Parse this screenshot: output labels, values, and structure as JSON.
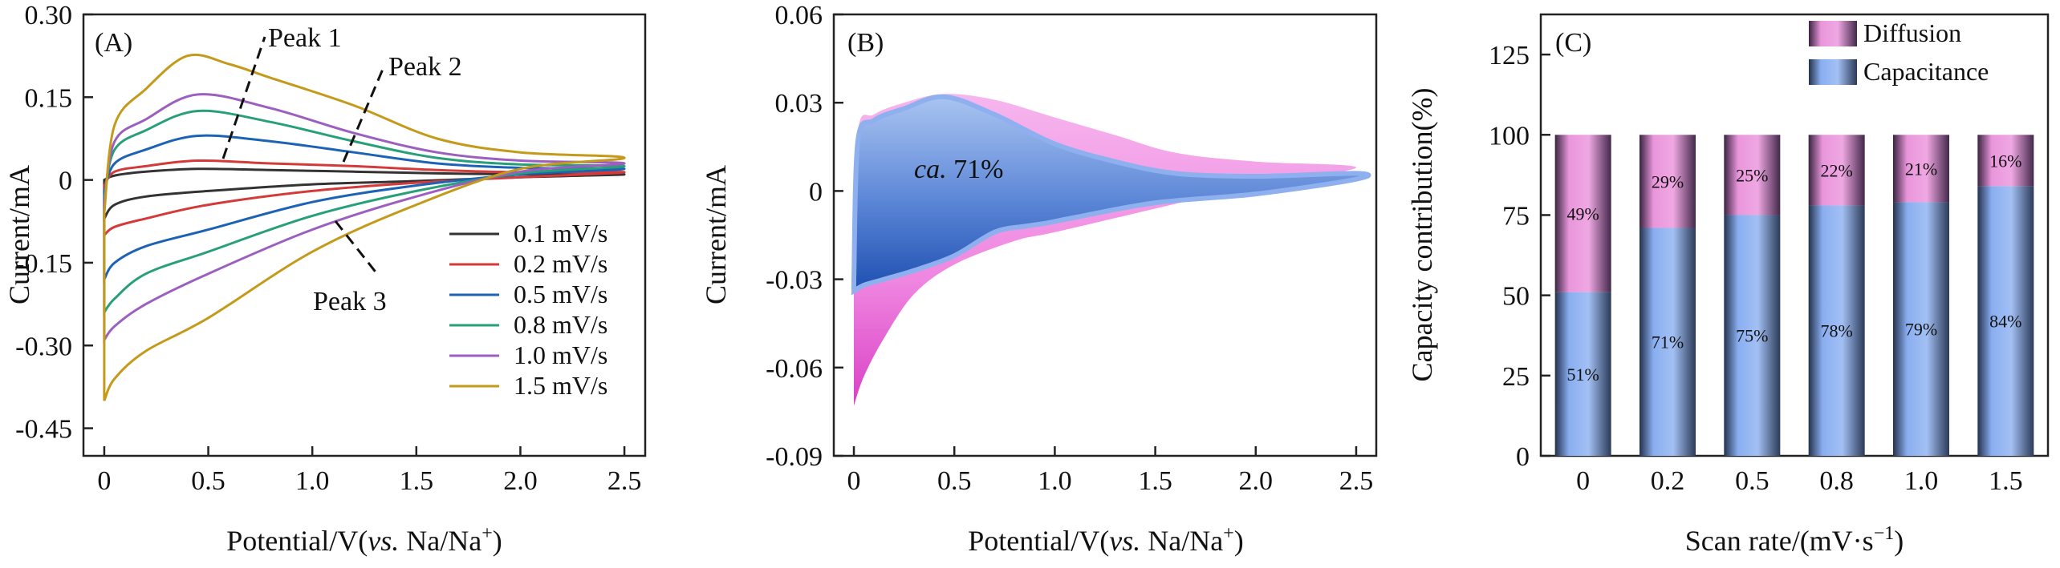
{
  "colors": {
    "s01": "#333333",
    "s02": "#d43a3a",
    "s05": "#1d63b5",
    "s08": "#27a07a",
    "s10": "#9b5fc0",
    "s15": "#c49a1b",
    "diffusion": "#e77fd8",
    "capacitance": "#7ea7ea"
  },
  "chart_data": [
    {
      "type": "line",
      "panel_label": "(A)",
      "xlabel_prefix": "Potential/V(",
      "xlabel_italic": "vs.",
      "xlabel_suffix": " Na/Na",
      "xlabel_sup": "+",
      "xlabel_close": ")",
      "ylabel": "Current/mA",
      "xlim": [
        -0.1,
        2.6
      ],
      "ylim": [
        -0.5,
        0.3
      ],
      "xticks": [
        0,
        0.5,
        1.0,
        1.5,
        2.0,
        2.5
      ],
      "xtick_labels": [
        "0",
        "0.5",
        "1.0",
        "1.5",
        "2.0",
        "2.5"
      ],
      "yticks": [
        0.3,
        0.15,
        0,
        -0.15,
        -0.3,
        -0.45
      ],
      "ytick_labels": [
        "0.30",
        "0.15",
        "0",
        "-0.15",
        "-0.30",
        "-0.45"
      ],
      "annotations": [
        "Peak 1",
        "Peak 2",
        "Peak 3"
      ],
      "series": [
        {
          "name": "0.1 mV/s",
          "color_key": "s01",
          "anodic": [
            [
              0,
              0
            ],
            [
              0.05,
              0.008
            ],
            [
              0.2,
              0.015
            ],
            [
              0.45,
              0.02
            ],
            [
              0.8,
              0.018
            ],
            [
              1.2,
              0.015
            ],
            [
              1.6,
              0.012
            ],
            [
              2.0,
              0.01
            ],
            [
              2.5,
              0.01
            ]
          ],
          "cathodic": [
            [
              2.5,
              0.01
            ],
            [
              2.0,
              0.005
            ],
            [
              1.5,
              -0.002
            ],
            [
              1.0,
              -0.008
            ],
            [
              0.5,
              -0.02
            ],
            [
              0.2,
              -0.03
            ],
            [
              0.05,
              -0.045
            ],
            [
              0,
              -0.07
            ]
          ]
        },
        {
          "name": "0.2 mV/s",
          "color_key": "s02",
          "anodic": [
            [
              0,
              -0.01
            ],
            [
              0.05,
              0.015
            ],
            [
              0.2,
              0.025
            ],
            [
              0.45,
              0.035
            ],
            [
              0.8,
              0.03
            ],
            [
              1.2,
              0.025
            ],
            [
              1.6,
              0.018
            ],
            [
              2.0,
              0.014
            ],
            [
              2.5,
              0.014
            ]
          ],
          "cathodic": [
            [
              2.5,
              0.014
            ],
            [
              2.0,
              0.005
            ],
            [
              1.5,
              -0.005
            ],
            [
              1.0,
              -0.02
            ],
            [
              0.5,
              -0.045
            ],
            [
              0.2,
              -0.07
            ],
            [
              0.05,
              -0.085
            ],
            [
              0,
              -0.1
            ]
          ]
        },
        {
          "name": "0.5 mV/s",
          "color_key": "s05",
          "anodic": [
            [
              0,
              -0.02
            ],
            [
              0.05,
              0.03
            ],
            [
              0.2,
              0.055
            ],
            [
              0.45,
              0.08
            ],
            [
              0.8,
              0.07
            ],
            [
              1.2,
              0.05
            ],
            [
              1.6,
              0.03
            ],
            [
              2.0,
              0.022
            ],
            [
              2.5,
              0.02
            ]
          ],
          "cathodic": [
            [
              2.5,
              0.02
            ],
            [
              2.0,
              0.01
            ],
            [
              1.5,
              -0.01
            ],
            [
              1.0,
              -0.04
            ],
            [
              0.5,
              -0.09
            ],
            [
              0.2,
              -0.12
            ],
            [
              0.05,
              -0.15
            ],
            [
              0,
              -0.18
            ]
          ]
        },
        {
          "name": "0.8 mV/s",
          "color_key": "s08",
          "anodic": [
            [
              0,
              -0.03
            ],
            [
              0.05,
              0.055
            ],
            [
              0.2,
              0.09
            ],
            [
              0.45,
              0.125
            ],
            [
              0.8,
              0.105
            ],
            [
              1.2,
              0.07
            ],
            [
              1.6,
              0.04
            ],
            [
              2.0,
              0.028
            ],
            [
              2.5,
              0.025
            ]
          ],
          "cathodic": [
            [
              2.5,
              0.025
            ],
            [
              2.0,
              0.012
            ],
            [
              1.5,
              -0.02
            ],
            [
              1.0,
              -0.065
            ],
            [
              0.5,
              -0.13
            ],
            [
              0.2,
              -0.17
            ],
            [
              0.05,
              -0.215
            ],
            [
              0,
              -0.24
            ]
          ]
        },
        {
          "name": "1.0 mV/s",
          "color_key": "s10",
          "anodic": [
            [
              0,
              -0.04
            ],
            [
              0.05,
              0.07
            ],
            [
              0.2,
              0.11
            ],
            [
              0.45,
              0.155
            ],
            [
              0.8,
              0.13
            ],
            [
              1.2,
              0.085
            ],
            [
              1.6,
              0.05
            ],
            [
              2.0,
              0.035
            ],
            [
              2.5,
              0.03
            ]
          ],
          "cathodic": [
            [
              2.5,
              0.03
            ],
            [
              2.0,
              0.015
            ],
            [
              1.5,
              -0.03
            ],
            [
              1.0,
              -0.09
            ],
            [
              0.5,
              -0.17
            ],
            [
              0.2,
              -0.225
            ],
            [
              0.05,
              -0.265
            ],
            [
              0,
              -0.29
            ]
          ]
        },
        {
          "name": "1.5 mV/s",
          "color_key": "s15",
          "anodic": [
            [
              0,
              -0.06
            ],
            [
              0.05,
              0.1
            ],
            [
              0.2,
              0.165
            ],
            [
              0.4,
              0.225
            ],
            [
              0.6,
              0.21
            ],
            [
              0.8,
              0.185
            ],
            [
              1.2,
              0.135
            ],
            [
              1.6,
              0.075
            ],
            [
              2.0,
              0.05
            ],
            [
              2.5,
              0.04
            ]
          ],
          "cathodic": [
            [
              2.5,
              0.04
            ],
            [
              2.0,
              0.02
            ],
            [
              1.5,
              -0.045
            ],
            [
              1.0,
              -0.13
            ],
            [
              0.5,
              -0.25
            ],
            [
              0.2,
              -0.31
            ],
            [
              0.05,
              -0.36
            ],
            [
              0,
              -0.4
            ]
          ]
        }
      ],
      "legend_position": "bottom-right"
    },
    {
      "type": "area",
      "panel_label": "(B)",
      "xlabel_prefix": "Potential/V(",
      "xlabel_italic": "vs.",
      "xlabel_suffix": " Na/Na",
      "xlabel_sup": "+",
      "xlabel_close": ")",
      "ylabel": "Current/mA",
      "xlim": [
        -0.1,
        2.6
      ],
      "ylim": [
        -0.09,
        0.06
      ],
      "xticks": [
        0,
        0.5,
        1.0,
        1.5,
        2.0,
        2.5
      ],
      "xtick_labels": [
        "0",
        "0.5",
        "1.0",
        "1.5",
        "2.0",
        "2.5"
      ],
      "yticks": [
        0.06,
        0.03,
        0,
        -0.03,
        -0.06,
        -0.09
      ],
      "ytick_labels": [
        "0.06",
        "0.03",
        "0",
        "-0.03",
        "-0.06",
        "-0.09"
      ],
      "annotation_italic": "ca.",
      "annotation_value": " 71%",
      "total_anodic": [
        [
          0,
          -0.03
        ],
        [
          0.02,
          0.02
        ],
        [
          0.1,
          0.026
        ],
        [
          0.25,
          0.03
        ],
        [
          0.45,
          0.033
        ],
        [
          0.7,
          0.031
        ],
        [
          1.0,
          0.025
        ],
        [
          1.3,
          0.019
        ],
        [
          1.6,
          0.013
        ],
        [
          2.0,
          0.01
        ],
        [
          2.5,
          0.008
        ]
      ],
      "total_cathodic": [
        [
          2.5,
          0.008
        ],
        [
          2.0,
          0.002
        ],
        [
          1.5,
          -0.006
        ],
        [
          1.0,
          -0.014
        ],
        [
          0.8,
          -0.017
        ],
        [
          0.5,
          -0.025
        ],
        [
          0.3,
          -0.035
        ],
        [
          0.15,
          -0.05
        ],
        [
          0.05,
          -0.063
        ],
        [
          0,
          -0.073
        ]
      ],
      "capacitive_anodic": [
        [
          0,
          -0.03
        ],
        [
          0.02,
          0.017
        ],
        [
          0.1,
          0.024
        ],
        [
          0.25,
          0.028
        ],
        [
          0.45,
          0.032
        ],
        [
          0.7,
          0.026
        ],
        [
          1.0,
          0.016
        ],
        [
          1.3,
          0.01
        ],
        [
          1.6,
          0.006
        ],
        [
          2.0,
          0.005
        ],
        [
          2.5,
          0.006
        ]
      ],
      "capacitive_cathodic": [
        [
          2.5,
          0.004
        ],
        [
          2.0,
          -0.001
        ],
        [
          1.5,
          -0.004
        ],
        [
          1.1,
          -0.009
        ],
        [
          0.95,
          -0.011
        ],
        [
          0.85,
          -0.012
        ],
        [
          0.7,
          -0.014
        ],
        [
          0.5,
          -0.022
        ],
        [
          0.3,
          -0.027
        ],
        [
          0.15,
          -0.03
        ],
        [
          0.05,
          -0.032
        ],
        [
          0,
          -0.034
        ]
      ]
    },
    {
      "type": "bar",
      "panel_label": "(C)",
      "xlabel": "Scan rate/(mV·s",
      "xlabel_sup": "−1",
      "xlabel_close": ")",
      "ylabel": "Capacity contribution(%)",
      "ylim": [
        0,
        137.5
      ],
      "yticks": [
        0,
        25,
        50,
        75,
        100,
        125
      ],
      "ytick_labels": [
        "0",
        "25",
        "50",
        "75",
        "100",
        "125"
      ],
      "categories": [
        "0",
        "0.2",
        "0.5",
        "0.8",
        "1.0",
        "1.5"
      ],
      "series": [
        {
          "name": "Capacitance",
          "values": [
            51,
            71,
            75,
            78,
            79,
            84
          ],
          "labels": [
            "51%",
            "71%",
            "75%",
            "78%",
            "79%",
            "84%"
          ]
        },
        {
          "name": "Diffusion",
          "values": [
            49,
            29,
            25,
            22,
            21,
            16
          ],
          "labels": [
            "49%",
            "29%",
            "25%",
            "22%",
            "21%",
            "16%"
          ]
        }
      ],
      "legend_position": "top-right"
    }
  ]
}
